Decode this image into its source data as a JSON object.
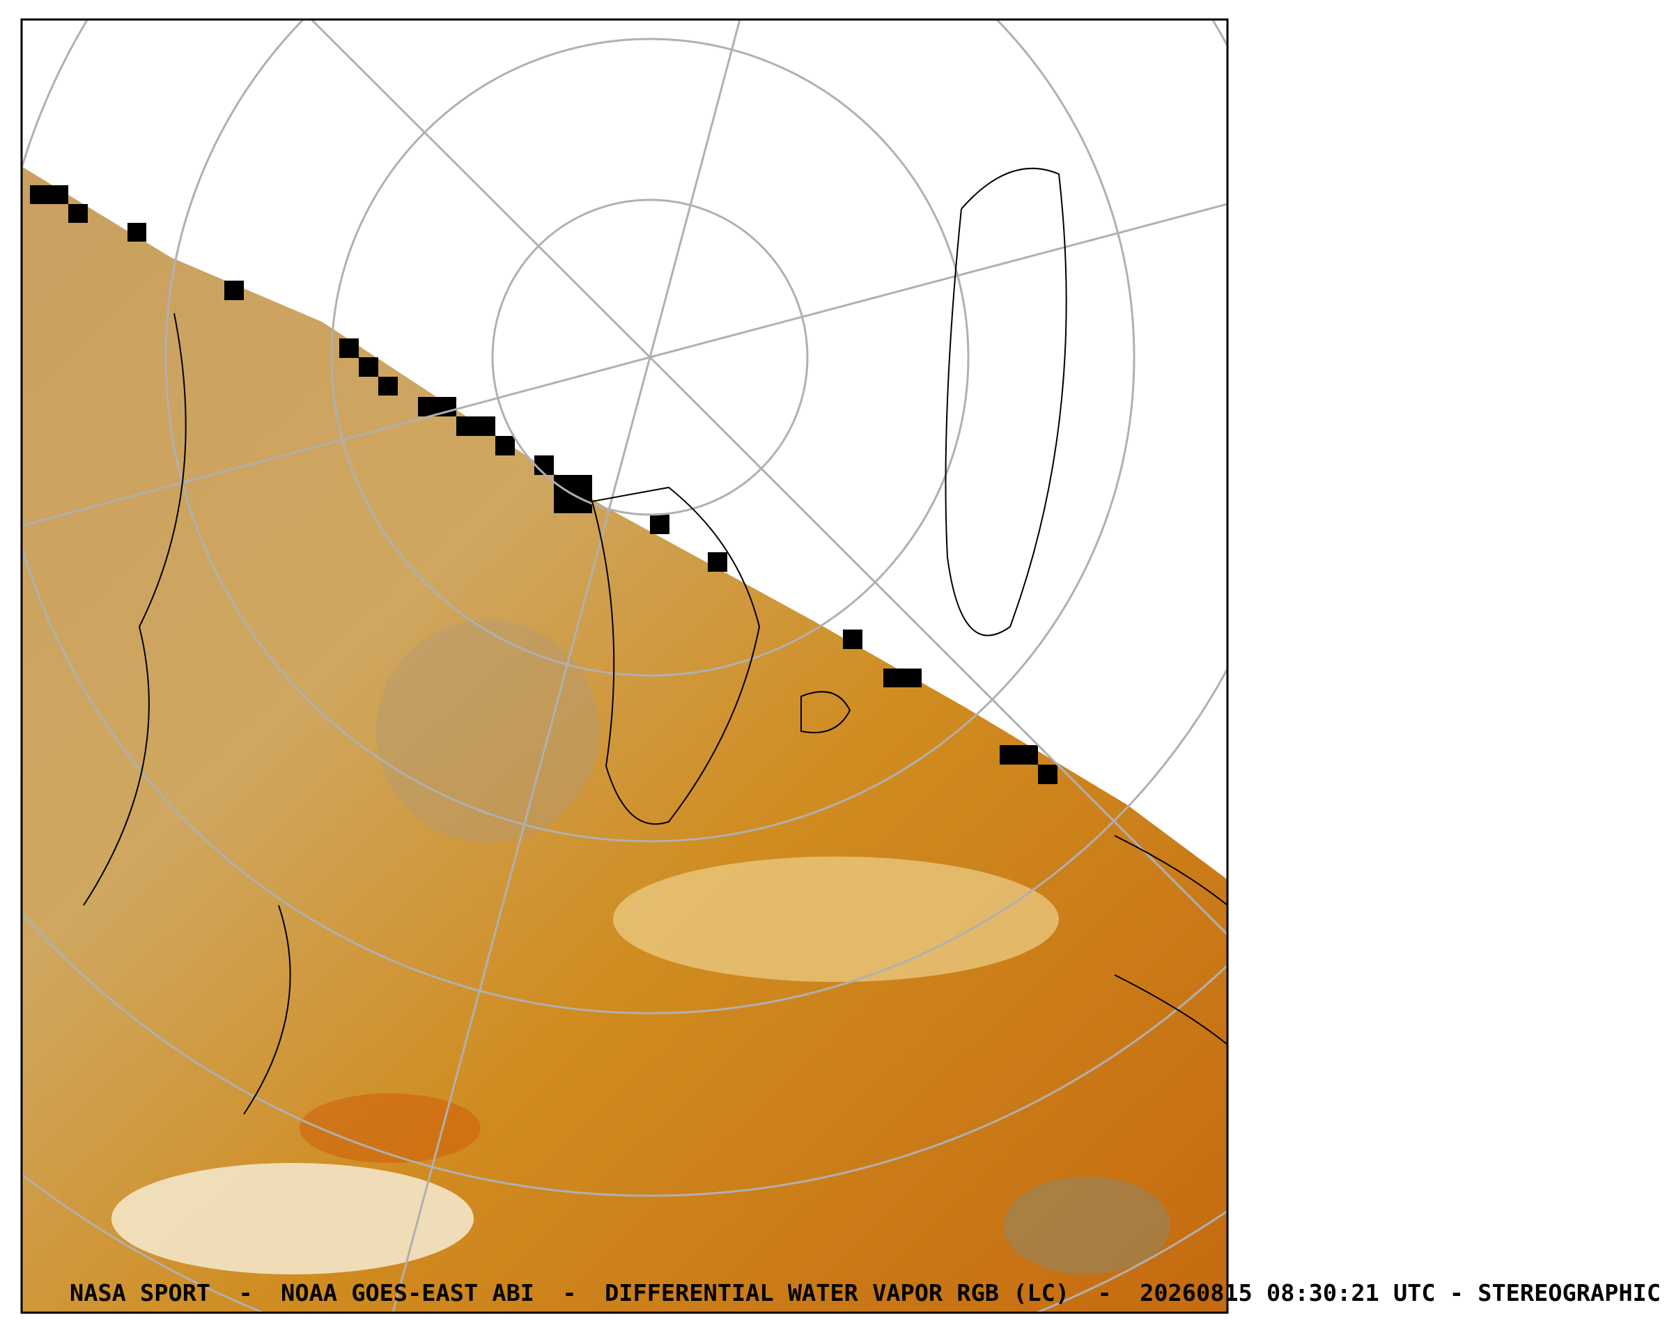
{
  "caption": "NASA SPORT  -  NOAA GOES-EAST ABI  -  DIFFERENTIAL WATER VAPOR RGB (LC)  -  20260815 08:30:21 UTC - STEREOGRAPHIC"
}
